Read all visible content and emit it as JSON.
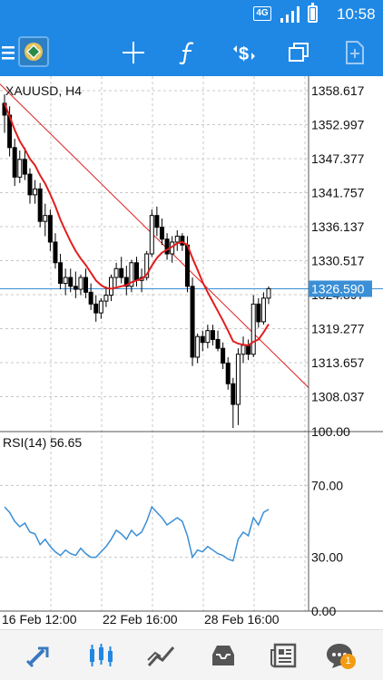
{
  "status_bar": {
    "network": "4G",
    "time": "10:58"
  },
  "toolbar": {
    "icons": [
      "menu-icon",
      "app-logo-icon",
      "crosshair-icon",
      "indicators-icon",
      "trade-icon",
      "windows-icon",
      "add-object-icon"
    ]
  },
  "chart": {
    "symbol_timeframe": "XAUUSD, H4",
    "price_labels": [
      "1358.617",
      "1352.997",
      "1347.377",
      "1341.757",
      "1336.137",
      "1330.517",
      "1324.897",
      "1319.277",
      "1313.657",
      "1308.037"
    ],
    "current_price": "1326.590",
    "rsi_title": "RSI(14) 56.65",
    "rsi_labels": [
      "100.00",
      "70.00",
      "30.00",
      "0.00"
    ],
    "dates": [
      "16 Feb 12:00",
      "22 Feb 16:00",
      "28 Feb 16:00"
    ],
    "colors": {
      "bull": "#000000",
      "bear": "#000000",
      "ma": "#e01e1e",
      "trendline": "#e01e1e",
      "rsi": "#3a8fd6",
      "price_line": "#3a8fd6"
    }
  },
  "chart_data": {
    "type": "candlestick",
    "title": "XAUUSD, H4",
    "y_range": [
      1302.4,
      1362.6
    ],
    "candles": [
      [
        1358.0,
        1359.5,
        1353.0,
        1356.0
      ],
      [
        1356.0,
        1357.5,
        1349.0,
        1350.5
      ],
      [
        1350.5,
        1352.0,
        1344.0,
        1345.5
      ],
      [
        1345.5,
        1350.0,
        1344.5,
        1348.5
      ],
      [
        1348.5,
        1350.5,
        1345.0,
        1346.0
      ],
      [
        1346.0,
        1347.0,
        1341.0,
        1342.5
      ],
      [
        1342.5,
        1345.0,
        1341.0,
        1343.5
      ],
      [
        1343.5,
        1344.5,
        1337.0,
        1338.0
      ],
      [
        1338.0,
        1341.0,
        1335.5,
        1339.0
      ],
      [
        1339.0,
        1340.0,
        1333.0,
        1334.5
      ],
      [
        1334.5,
        1336.0,
        1330.0,
        1331.0
      ],
      [
        1331.0,
        1332.5,
        1326.5,
        1327.5
      ],
      [
        1327.5,
        1330.0,
        1325.5,
        1328.5
      ],
      [
        1328.5,
        1330.0,
        1326.0,
        1327.0
      ],
      [
        1327.0,
        1329.5,
        1325.0,
        1326.5
      ],
      [
        1326.5,
        1329.0,
        1325.5,
        1328.5
      ],
      [
        1328.5,
        1330.0,
        1325.0,
        1326.0
      ],
      [
        1326.0,
        1327.5,
        1323.0,
        1324.0
      ],
      [
        1324.0,
        1325.5,
        1321.0,
        1322.5
      ],
      [
        1322.5,
        1325.0,
        1321.5,
        1324.5
      ],
      [
        1324.5,
        1327.0,
        1323.5,
        1325.5
      ],
      [
        1325.5,
        1329.0,
        1324.5,
        1328.5
      ],
      [
        1328.5,
        1331.0,
        1327.0,
        1330.0
      ],
      [
        1330.0,
        1332.0,
        1327.5,
        1328.5
      ],
      [
        1328.5,
        1330.5,
        1325.5,
        1327.0
      ],
      [
        1327.0,
        1331.5,
        1326.0,
        1331.0
      ],
      [
        1331.0,
        1332.0,
        1327.0,
        1328.0
      ],
      [
        1328.0,
        1330.0,
        1326.0,
        1328.5
      ],
      [
        1328.5,
        1333.0,
        1328.0,
        1332.5
      ],
      [
        1332.5,
        1340.0,
        1332.0,
        1339.0
      ],
      [
        1339.0,
        1340.5,
        1335.5,
        1337.0
      ],
      [
        1337.0,
        1338.5,
        1334.0,
        1335.0
      ],
      [
        1335.0,
        1336.0,
        1331.5,
        1332.5
      ],
      [
        1332.5,
        1335.5,
        1331.0,
        1334.5
      ],
      [
        1334.5,
        1336.5,
        1333.0,
        1335.5
      ],
      [
        1335.5,
        1336.0,
        1333.0,
        1334.0
      ],
      [
        1334.0,
        1335.5,
        1326.0,
        1327.0
      ],
      [
        1327.0,
        1328.5,
        1313.5,
        1315.0
      ],
      [
        1315.0,
        1319.0,
        1314.0,
        1318.5
      ],
      [
        1318.5,
        1319.5,
        1316.0,
        1317.5
      ],
      [
        1317.5,
        1320.5,
        1316.5,
        1319.5
      ],
      [
        1319.5,
        1320.5,
        1317.0,
        1318.0
      ],
      [
        1318.0,
        1319.5,
        1316.0,
        1316.5
      ],
      [
        1316.5,
        1317.5,
        1313.0,
        1314.0
      ],
      [
        1314.0,
        1315.0,
        1309.5,
        1310.5
      ],
      [
        1310.5,
        1311.5,
        1303.0,
        1307.0
      ],
      [
        1307.0,
        1316.5,
        1303.5,
        1315.5
      ],
      [
        1315.5,
        1318.5,
        1314.0,
        1317.0
      ],
      [
        1317.0,
        1318.0,
        1314.5,
        1315.5
      ],
      [
        1315.5,
        1325.5,
        1315.0,
        1324.0
      ],
      [
        1324.0,
        1325.0,
        1320.0,
        1321.0
      ],
      [
        1321.0,
        1326.0,
        1320.5,
        1325.0
      ],
      [
        1325.0,
        1327.0,
        1324.0,
        1326.6
      ]
    ],
    "ma": [
      1358,
      1355.8,
      1353.5,
      1351.6,
      1350.2,
      1348.6,
      1347.5,
      1345.8,
      1344.4,
      1342.6,
      1340.6,
      1338.3,
      1336.4,
      1334.6,
      1333.0,
      1331.7,
      1330.6,
      1329.3,
      1328.0,
      1327.2,
      1326.7,
      1326.6,
      1326.8,
      1327.0,
      1327.2,
      1327.7,
      1328.0,
      1328.3,
      1329.0,
      1330.5,
      1331.8,
      1332.7,
      1333.2,
      1333.7,
      1334.3,
      1334.5,
      1334.0,
      1331.8,
      1329.8,
      1327.7,
      1326.0,
      1324.4,
      1322.8,
      1321.2,
      1319.5,
      1317.7,
      1317.3,
      1317.1,
      1317.0,
      1317.6,
      1318.0,
      1319.2,
      1320.6
    ],
    "trendline": [
      [
        0,
        1360.5
      ],
      [
        52,
        1316.5
      ]
    ],
    "rsi": [
      58,
      55,
      50,
      47,
      49,
      44,
      43,
      37,
      40,
      36,
      33,
      31,
      34,
      32,
      31,
      35,
      32,
      30,
      30,
      33,
      36,
      40,
      45,
      43,
      40,
      45,
      42,
      44,
      50,
      58,
      55,
      52,
      48,
      50,
      52,
      50,
      42,
      30,
      34,
      33,
      36,
      34,
      32,
      31,
      29,
      28,
      40,
      44,
      42,
      52,
      48,
      55,
      56.65
    ],
    "rsi_range": [
      0,
      100
    ]
  }
}
